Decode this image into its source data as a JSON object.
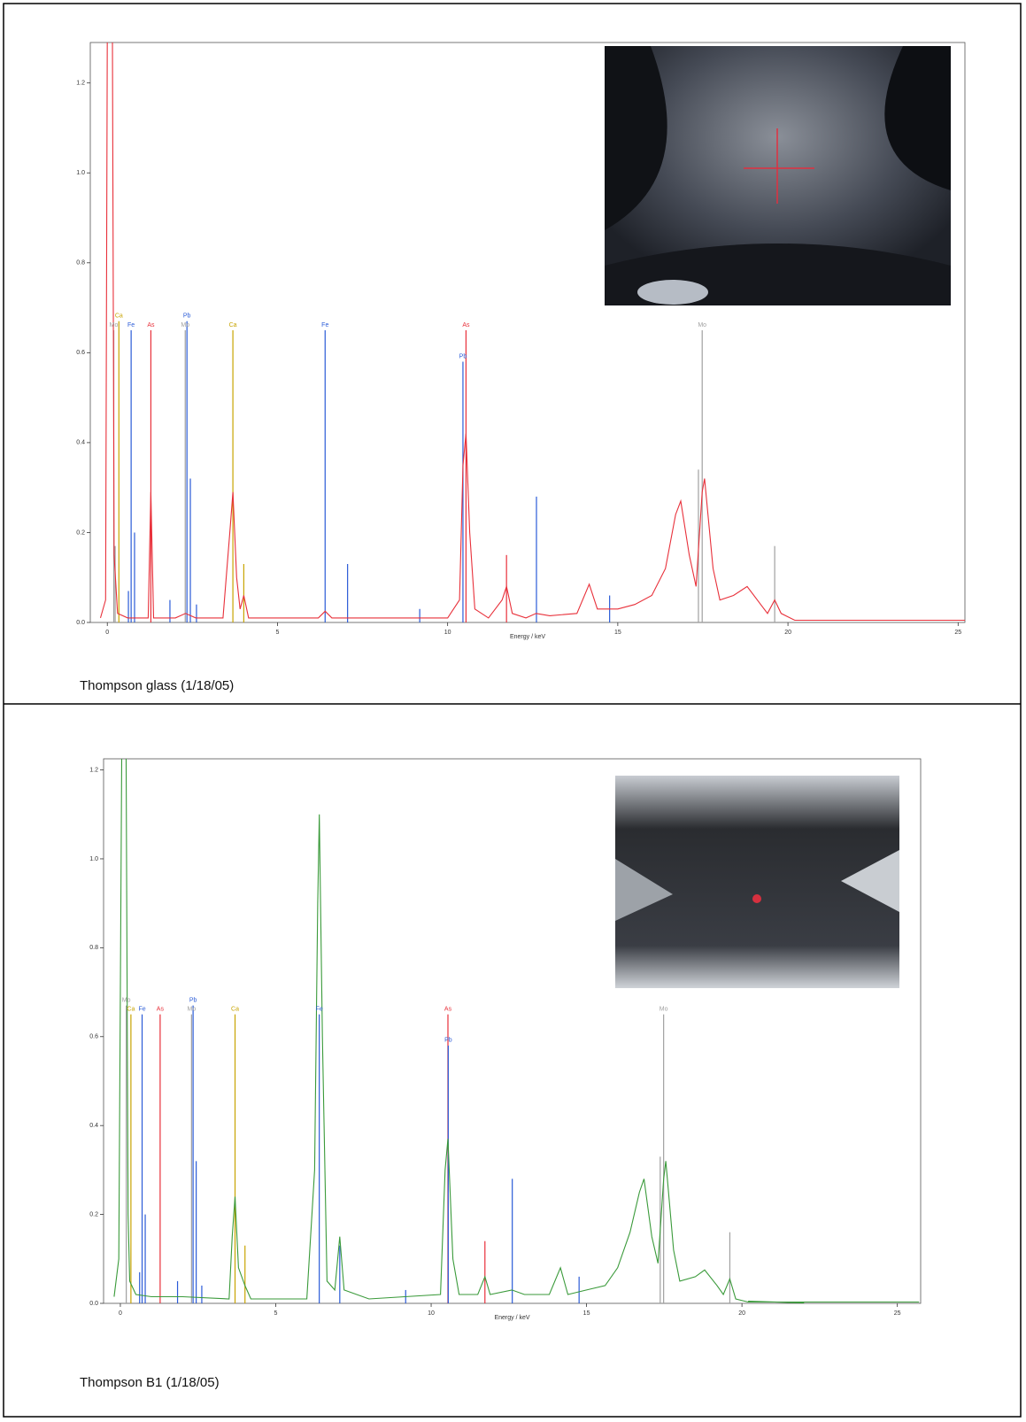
{
  "chart_data": [
    {
      "type": "line",
      "x_label": "Energy / keV",
      "caption": "Thompson glass (1/18/05)",
      "xlim": [
        -0.5,
        25.2
      ],
      "ylim": [
        0,
        1.29
      ],
      "xticks": [
        0,
        5,
        10,
        15,
        20,
        25
      ],
      "yticks": [
        {
          "value": 0,
          "label": "0.0"
        },
        0.2,
        0.4,
        0.6,
        0.8,
        {
          "value": 1,
          "label": "1.0"
        },
        1.2
      ],
      "x": [
        -0.2,
        -0.05,
        0.0,
        0.15,
        0.2,
        0.3,
        0.6,
        1.2,
        1.28,
        1.36,
        2.0,
        2.3,
        2.6,
        3.4,
        3.6,
        3.69,
        3.8,
        3.9,
        4.01,
        4.15,
        5.0,
        6.2,
        6.4,
        6.6,
        8.0,
        10.0,
        10.35,
        10.45,
        10.54,
        10.65,
        10.8,
        11.2,
        11.6,
        11.73,
        11.9,
        12.3,
        12.6,
        13.0,
        13.8,
        14.16,
        14.4,
        15.0,
        15.5,
        16.0,
        16.4,
        16.7,
        16.85,
        17.1,
        17.3,
        17.48,
        17.55,
        17.8,
        18.0,
        18.4,
        18.8,
        19.2,
        19.4,
        19.61,
        19.8,
        20.2,
        22,
        25.2
      ],
      "series": [
        {
          "color": "#e8303a",
          "values": [
            0.01,
            0.05,
            1.3,
            1.3,
            0.15,
            0.02,
            0.01,
            0.01,
            0.29,
            0.01,
            0.01,
            0.02,
            0.01,
            0.01,
            0.2,
            0.29,
            0.1,
            0.03,
            0.06,
            0.01,
            0.01,
            0.01,
            0.025,
            0.01,
            0.01,
            0.01,
            0.05,
            0.35,
            0.42,
            0.2,
            0.03,
            0.01,
            0.05,
            0.08,
            0.02,
            0.01,
            0.02,
            0.015,
            0.02,
            0.085,
            0.03,
            0.03,
            0.04,
            0.06,
            0.12,
            0.24,
            0.27,
            0.15,
            0.08,
            0.29,
            0.32,
            0.12,
            0.05,
            0.06,
            0.08,
            0.04,
            0.02,
            0.05,
            0.02,
            0.005,
            0.005,
            0.005
          ]
        }
      ],
      "markers": [
        {
          "label": "Mo",
          "x": 0.19,
          "height": 0.65,
          "color": "#a0a0a0"
        },
        {
          "label": "Ca",
          "x": 0.34,
          "height": 0.67,
          "color": "#c8a400"
        },
        {
          "label": "Fe",
          "x": 0.7,
          "height": 0.65,
          "color": "#2a5bd7"
        },
        {
          "label": "As",
          "x": 1.28,
          "height": 0.65,
          "color": "#e8303a"
        },
        {
          "label": "Mo",
          "x": 2.29,
          "height": 0.65,
          "color": "#a0a0a0"
        },
        {
          "label": "Pb",
          "x": 2.34,
          "height": 0.67,
          "color": "#2a5bd7"
        },
        {
          "label": "Ca",
          "x": 3.69,
          "height": 0.65,
          "color": "#c8a400"
        },
        {
          "label": "Fe",
          "x": 6.4,
          "height": 0.65,
          "color": "#2a5bd7"
        },
        {
          "label": "As",
          "x": 10.54,
          "height": 0.65,
          "color": "#e8303a"
        },
        {
          "label": "Pb",
          "x": 10.45,
          "height": 0.58,
          "color": "#2a5bd7"
        },
        {
          "label": "Mo",
          "x": 17.48,
          "height": 0.65,
          "color": "#a0a0a0"
        },
        {
          "x": 0.23,
          "height": 0.17,
          "color": "#a0a0a0"
        },
        {
          "x": 0.62,
          "height": 0.07,
          "color": "#2a5bd7"
        },
        {
          "x": 0.8,
          "height": 0.2,
          "color": "#2a5bd7"
        },
        {
          "x": 1.84,
          "height": 0.05,
          "color": "#2a5bd7"
        },
        {
          "x": 2.44,
          "height": 0.32,
          "color": "#2a5bd7"
        },
        {
          "x": 2.62,
          "height": 0.04,
          "color": "#2a5bd7"
        },
        {
          "x": 4.01,
          "height": 0.13,
          "color": "#c8a400"
        },
        {
          "x": 7.06,
          "height": 0.13,
          "color": "#2a5bd7"
        },
        {
          "x": 9.18,
          "height": 0.03,
          "color": "#2a5bd7"
        },
        {
          "x": 11.73,
          "height": 0.15,
          "color": "#e8303a"
        },
        {
          "x": 12.61,
          "height": 0.28,
          "color": "#2a5bd7"
        },
        {
          "x": 14.76,
          "height": 0.06,
          "color": "#2a5bd7"
        },
        {
          "x": 17.37,
          "height": 0.34,
          "color": "#a0a0a0"
        },
        {
          "x": 19.61,
          "height": 0.17,
          "color": "#a0a0a0"
        }
      ]
    },
    {
      "type": "line",
      "x_label": "Energy / keV",
      "caption": "Thompson B1 (1/18/05)",
      "xlim": [
        -0.54,
        25.75
      ],
      "ylim": [
        0,
        1.225
      ],
      "xticks": [
        0,
        5,
        10,
        15,
        20,
        25
      ],
      "yticks": [
        {
          "value": 0,
          "label": "0.0"
        },
        0.2,
        0.4,
        0.6,
        0.8,
        {
          "value": 1,
          "label": "1.0"
        },
        1.2
      ],
      "x": [
        -0.2,
        -0.05,
        0.05,
        0.18,
        0.25,
        0.3,
        0.5,
        1.0,
        2.0,
        3.5,
        3.6,
        3.69,
        3.8,
        4.01,
        4.2,
        6.0,
        6.25,
        6.35,
        6.4,
        6.5,
        6.65,
        6.9,
        7.06,
        7.2,
        8,
        10.3,
        10.45,
        10.54,
        10.7,
        10.9,
        11.5,
        11.73,
        11.9,
        12.6,
        13,
        13.8,
        14.16,
        14.4,
        15.0,
        15.6,
        16.0,
        16.4,
        16.7,
        16.85,
        17.1,
        17.3,
        17.48,
        17.55,
        17.8,
        18.0,
        18.5,
        18.8,
        19.2,
        19.4,
        19.61,
        19.8,
        20.2,
        22,
        25.7
      ],
      "series": [
        {
          "color": "#3a9a3a",
          "values": [
            0.015,
            0.1,
            1.3,
            1.3,
            0.2,
            0.05,
            0.02,
            0.015,
            0.015,
            0.01,
            0.15,
            0.24,
            0.08,
            0.04,
            0.01,
            0.01,
            0.3,
            0.9,
            1.1,
            0.6,
            0.05,
            0.03,
            0.15,
            0.03,
            0.01,
            0.02,
            0.3,
            0.37,
            0.1,
            0.02,
            0.02,
            0.06,
            0.02,
            0.03,
            0.02,
            0.02,
            0.08,
            0.02,
            0.03,
            0.04,
            0.08,
            0.16,
            0.25,
            0.28,
            0.15,
            0.09,
            0.28,
            0.32,
            0.12,
            0.05,
            0.06,
            0.075,
            0.04,
            0.02,
            0.055,
            0.01,
            0.003,
            0.003,
            0.003
          ]
        },
        {
          "color": "#3a9a3a",
          "values": [
            0.02,
            null,
            null,
            null,
            null,
            null,
            null,
            0.01,
            null,
            null,
            null,
            null,
            null,
            null,
            null,
            null,
            null,
            null,
            null,
            null,
            null,
            null,
            null,
            null,
            0.006,
            null,
            null,
            null,
            null,
            null,
            null,
            null,
            null,
            null,
            0.016,
            null,
            null,
            null,
            0.028,
            null,
            0.032,
            null,
            null,
            0.033,
            null,
            null,
            null,
            null,
            null,
            0.03,
            null,
            null,
            0.018,
            null,
            null,
            null,
            0.005,
            0.001,
            null
          ]
        }
      ],
      "markers": [
        {
          "label": "Mo",
          "x": 0.19,
          "height": 0.67,
          "color": "#a0a0a0"
        },
        {
          "label": "Ca",
          "x": 0.34,
          "height": 0.65,
          "color": "#c8a400"
        },
        {
          "label": "Fe",
          "x": 0.7,
          "height": 0.65,
          "color": "#2a5bd7"
        },
        {
          "label": "As",
          "x": 1.28,
          "height": 0.65,
          "color": "#e8303a"
        },
        {
          "label": "Pb",
          "x": 2.34,
          "height": 0.67,
          "color": "#2a5bd7"
        },
        {
          "label": "Mo",
          "x": 2.29,
          "height": 0.65,
          "color": "#a0a0a0"
        },
        {
          "label": "Ca",
          "x": 3.69,
          "height": 0.65,
          "color": "#c8a400"
        },
        {
          "label": "Fe",
          "x": 6.4,
          "height": 0.65,
          "color": "#2a5bd7"
        },
        {
          "label": "As",
          "x": 10.54,
          "height": 0.65,
          "color": "#e8303a"
        },
        {
          "label": "Pb",
          "x": 10.55,
          "height": 0.58,
          "color": "#2a5bd7"
        },
        {
          "label": "Mo",
          "x": 17.48,
          "height": 0.65,
          "color": "#a0a0a0"
        },
        {
          "x": 0.62,
          "height": 0.07,
          "color": "#2a5bd7"
        },
        {
          "x": 0.8,
          "height": 0.2,
          "color": "#2a5bd7"
        },
        {
          "x": 1.84,
          "height": 0.05,
          "color": "#2a5bd7"
        },
        {
          "x": 2.44,
          "height": 0.32,
          "color": "#2a5bd7"
        },
        {
          "x": 2.62,
          "height": 0.04,
          "color": "#2a5bd7"
        },
        {
          "x": 4.01,
          "height": 0.13,
          "color": "#c8a400"
        },
        {
          "x": 7.06,
          "height": 0.13,
          "color": "#2a5bd7"
        },
        {
          "x": 9.18,
          "height": 0.03,
          "color": "#2a5bd7"
        },
        {
          "x": 11.73,
          "height": 0.14,
          "color": "#e8303a"
        },
        {
          "x": 12.61,
          "height": 0.28,
          "color": "#2a5bd7"
        },
        {
          "x": 14.76,
          "height": 0.06,
          "color": "#2a5bd7"
        },
        {
          "x": 17.37,
          "height": 0.33,
          "color": "#a0a0a0"
        },
        {
          "x": 19.61,
          "height": 0.16,
          "color": "#a0a0a0"
        }
      ]
    }
  ]
}
